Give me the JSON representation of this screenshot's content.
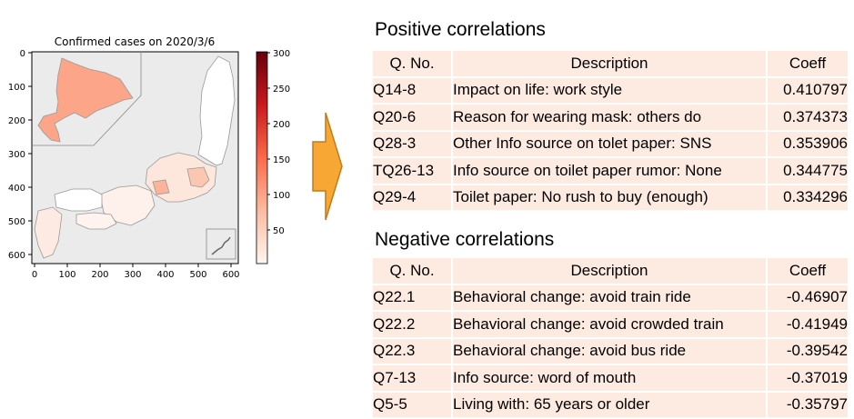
{
  "map_chart": {
    "title": "Confirmed cases on 2020/3/6",
    "x_ticks": [
      "0",
      "100",
      "200",
      "300",
      "400",
      "500",
      "600"
    ],
    "y_ticks": [
      "0",
      "100",
      "200",
      "300",
      "400",
      "500",
      "600"
    ],
    "colorbar_ticks": [
      "50",
      "100",
      "150",
      "200",
      "250",
      "300"
    ],
    "colormap": [
      "#fff5f0",
      "#fcbba1",
      "#fb6a4a",
      "#cb181d",
      "#67000d"
    ],
    "background_color": "#ebebeb"
  },
  "arrow_icon": "right-arrow-icon",
  "positive": {
    "title": "Positive correlations",
    "headers": [
      "Q. No.",
      "Description",
      "Coeff"
    ],
    "rows": [
      [
        "Q14-8",
        "Impact on life: work style",
        "0.410797"
      ],
      [
        "Q20-6",
        "Reason for wearing mask: others do",
        "0.374373"
      ],
      [
        "Q28-3",
        "Other Info source on tolet paper: SNS",
        "0.353906"
      ],
      [
        "TQ26-13",
        "Info source on toilet paper rumor: None",
        "0.344775"
      ],
      [
        "Q29-4",
        "Toilet paper: No rush to buy (enough)",
        "0.334296"
      ]
    ]
  },
  "negative": {
    "title": "Negative correlations",
    "headers": [
      "Q. No.",
      "Description",
      "Coeff"
    ],
    "rows": [
      [
        "Q22.1",
        "Behavioral change: avoid train ride",
        "-0.46907"
      ],
      [
        "Q22.2",
        "Behavioral change: avoid crowded train",
        "-0.41949"
      ],
      [
        "Q22.3",
        "Behavioral change: avoid bus ride",
        "-0.39542"
      ],
      [
        "Q7-13",
        "Info source: word of mouth",
        "-0.37019"
      ],
      [
        "Q5-5",
        "Living with: 65 years or older",
        "-0.35797"
      ]
    ]
  },
  "chart_data": [
    {
      "type": "heatmap",
      "title": "Confirmed cases on 2020/3/6",
      "xlim": [
        0,
        620
      ],
      "ylim": [
        640,
        0
      ],
      "x_ticks": [
        0,
        100,
        200,
        300,
        400,
        500,
        600
      ],
      "y_ticks": [
        0,
        100,
        200,
        300,
        400,
        500,
        600
      ],
      "colorbar": {
        "min": 0,
        "max": 300,
        "ticks": [
          50,
          100,
          150,
          200,
          250,
          300
        ],
        "cmap": "Reds"
      }
    },
    {
      "type": "table",
      "title": "Positive correlations",
      "columns": [
        "Q. No.",
        "Description",
        "Coeff"
      ],
      "rows": [
        [
          "Q14-8",
          "Impact on life: work style",
          0.410797
        ],
        [
          "Q20-6",
          "Reason for wearing mask: others do",
          0.374373
        ],
        [
          "Q28-3",
          "Other Info source on tolet paper: SNS",
          0.353906
        ],
        [
          "TQ26-13",
          "Info source on toilet paper rumor: None",
          0.344775
        ],
        [
          "Q29-4",
          "Toilet paper: No rush to buy (enough)",
          0.334296
        ]
      ]
    },
    {
      "type": "table",
      "title": "Negative correlations",
      "columns": [
        "Q. No.",
        "Description",
        "Coeff"
      ],
      "rows": [
        [
          "Q22.1",
          "Behavioral change: avoid train ride",
          -0.46907
        ],
        [
          "Q22.2",
          "Behavioral change: avoid crowded train",
          -0.41949
        ],
        [
          "Q22.3",
          "Behavioral change: avoid bus ride",
          -0.39542
        ],
        [
          "Q7-13",
          "Info source: word of mouth",
          -0.37019
        ],
        [
          "Q5-5",
          "Living with: 65 years or older",
          -0.35797
        ]
      ]
    }
  ]
}
